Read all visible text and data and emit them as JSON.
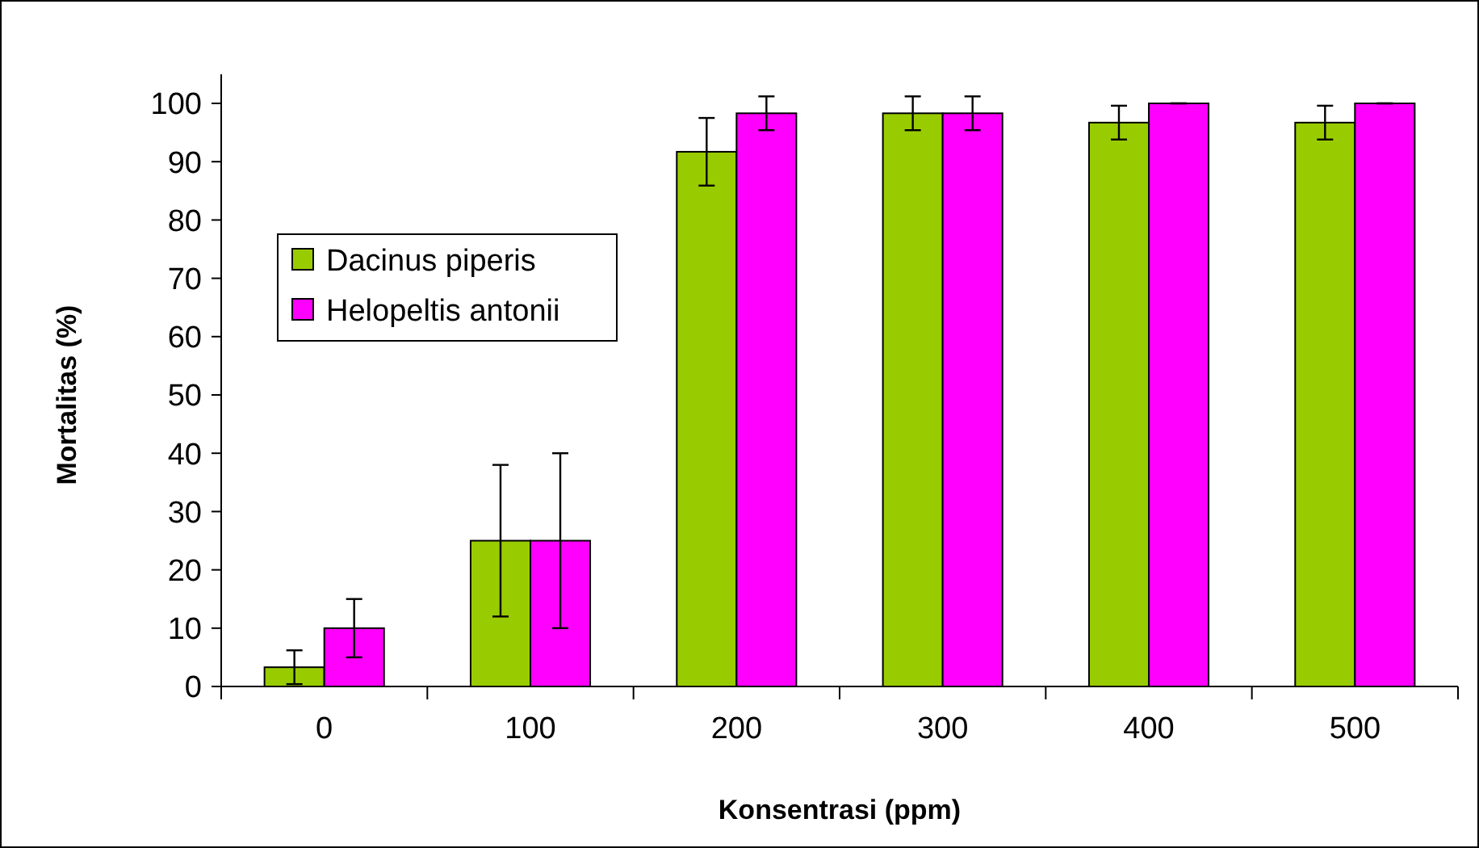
{
  "chart_data": {
    "type": "bar",
    "xlabel": "Konsentrasi (ppm)",
    "ylabel": "Mortalitas (%)",
    "categories": [
      "0",
      "100",
      "200",
      "300",
      "400",
      "500"
    ],
    "series": [
      {
        "name": "Dacinus piperis",
        "color": "#99cc00",
        "values": [
          3.3,
          25,
          91.7,
          98.3,
          96.7,
          96.7
        ],
        "errors": [
          2.9,
          13,
          5.8,
          2.9,
          2.9,
          2.9
        ]
      },
      {
        "name": "Helopeltis antonii",
        "color": "#ff00ff",
        "values": [
          10,
          25,
          98.3,
          98.3,
          100,
          100
        ],
        "errors": [
          5,
          15,
          2.9,
          2.9,
          0,
          0
        ]
      }
    ],
    "ylim": [
      0,
      100
    ],
    "yticks": [
      0,
      10,
      20,
      30,
      40,
      50,
      60,
      70,
      80,
      90,
      100
    ],
    "grid": false,
    "legend": "top left"
  }
}
